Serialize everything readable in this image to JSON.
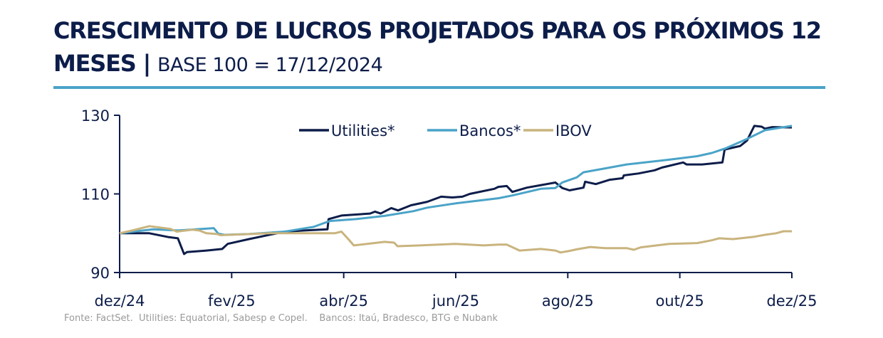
{
  "title": "CRESCIMENTO DE LUCROS PROJETADOS PARA OS PRÓXIMOS 12 MESES",
  "title_sep": " | ",
  "subtitle": "BASE 100 = 17/12/2024",
  "footer": "Fonte: FactSet.  Utilities: Equatorial, Sabesp e Copel.    Bancos: Itaú, Bradesco, BTG e Nubank",
  "chart_data": {
    "type": "line",
    "ylim": [
      90,
      130
    ],
    "yticks": [
      90,
      110,
      130
    ],
    "xlim": [
      0,
      12
    ],
    "xtick_labels": [
      "dez/24",
      "fev/25",
      "abr/25",
      "jun/25",
      "ago/25",
      "out/25",
      "dez/25"
    ],
    "xtick_pos": [
      0,
      2,
      4,
      6,
      8,
      10,
      12
    ],
    "legend_position": "top-center",
    "series": [
      {
        "name": "Utilities*",
        "color": "#0d1d4a",
        "x": [
          0,
          0.53,
          0.88,
          1.04,
          1.15,
          1.2,
          1.55,
          1.83,
          1.93,
          2.31,
          2.95,
          3.3,
          3.71,
          3.73,
          3.96,
          4.47,
          4.56,
          4.66,
          4.85,
          4.97,
          5.2,
          5.49,
          5.74,
          5.94,
          6.12,
          6.25,
          6.69,
          6.76,
          6.91,
          7.01,
          7.27,
          7.78,
          7.9,
          8.03,
          8.28,
          8.31,
          8.5,
          8.75,
          8.98,
          9.0,
          9.26,
          9.55,
          9.68,
          10.06,
          10.12,
          10.4,
          10.76,
          10.8,
          11.08,
          11.2,
          11.33,
          11.46,
          11.52,
          11.65,
          12
        ],
        "values": [
          100,
          100,
          99,
          98.7,
          94.7,
          95.2,
          95.6,
          96,
          97.3,
          98.5,
          100.4,
          100.7,
          101,
          103.6,
          104.5,
          105,
          105.5,
          105,
          106.4,
          105.8,
          107.1,
          108,
          109.3,
          109.1,
          109.3,
          110,
          111.3,
          111.8,
          112,
          110.5,
          111.6,
          112.9,
          111.5,
          110.9,
          111.6,
          113.1,
          112.5,
          113.6,
          114,
          114.7,
          115.2,
          116,
          116.7,
          118,
          117.5,
          117.5,
          118,
          121.3,
          122.2,
          123.6,
          127.3,
          127.1,
          126.6,
          127,
          126.9
        ]
      },
      {
        "name": "Bancos*",
        "color": "#4aa3c8",
        "x": [
          0,
          0.6,
          1.04,
          1.68,
          1.76,
          1.87,
          2.31,
          2.95,
          3.2,
          3.46,
          3.75,
          4.22,
          4.73,
          5.24,
          5.49,
          6,
          6.76,
          7.01,
          7.52,
          7.78,
          7.9,
          8.16,
          8.28,
          8.67,
          9.05,
          9.81,
          10.31,
          10.57,
          10.82,
          11.2,
          11.52,
          12
        ],
        "values": [
          100,
          101,
          100.7,
          101.3,
          99.9,
          99.6,
          99.8,
          100.4,
          101,
          101.6,
          103.1,
          103.6,
          104.4,
          105.6,
          106.5,
          107.6,
          108.9,
          109.6,
          111.3,
          111.5,
          112.9,
          114.2,
          115.5,
          116.5,
          117.5,
          118.7,
          119.6,
          120.4,
          121.6,
          124,
          126.2,
          127.3
        ]
      },
      {
        "name": "IBOV",
        "color": "#c9b47e",
        "x": [
          0,
          0.28,
          0.53,
          0.91,
          1.02,
          1.3,
          1.42,
          1.55,
          1.74,
          1.8,
          2.18,
          2.69,
          3.2,
          3.84,
          3.96,
          4.09,
          4.18,
          4.73,
          4.9,
          4.96,
          5.36,
          6,
          6.5,
          6.76,
          6.91,
          7.14,
          7.52,
          7.78,
          7.87,
          8.03,
          8.16,
          8.4,
          8.67,
          9.05,
          9.18,
          9.3,
          9.81,
          10.31,
          10.57,
          10.7,
          10.95,
          11.33,
          11.52,
          11.72,
          11.85,
          12
        ],
        "values": [
          100,
          100.9,
          101.8,
          101.1,
          100.4,
          100.9,
          100.7,
          100,
          99.8,
          99.5,
          99.7,
          100,
          100,
          100,
          100.4,
          98.4,
          96.9,
          97.8,
          97.6,
          96.7,
          96.9,
          97.3,
          96.9,
          97.1,
          97.1,
          95.6,
          96,
          95.6,
          95.1,
          95.5,
          95.9,
          96.5,
          96.2,
          96.2,
          95.8,
          96.4,
          97.3,
          97.5,
          98.2,
          98.7,
          98.5,
          99.1,
          99.6,
          100,
          100.5,
          100.5
        ]
      }
    ]
  }
}
